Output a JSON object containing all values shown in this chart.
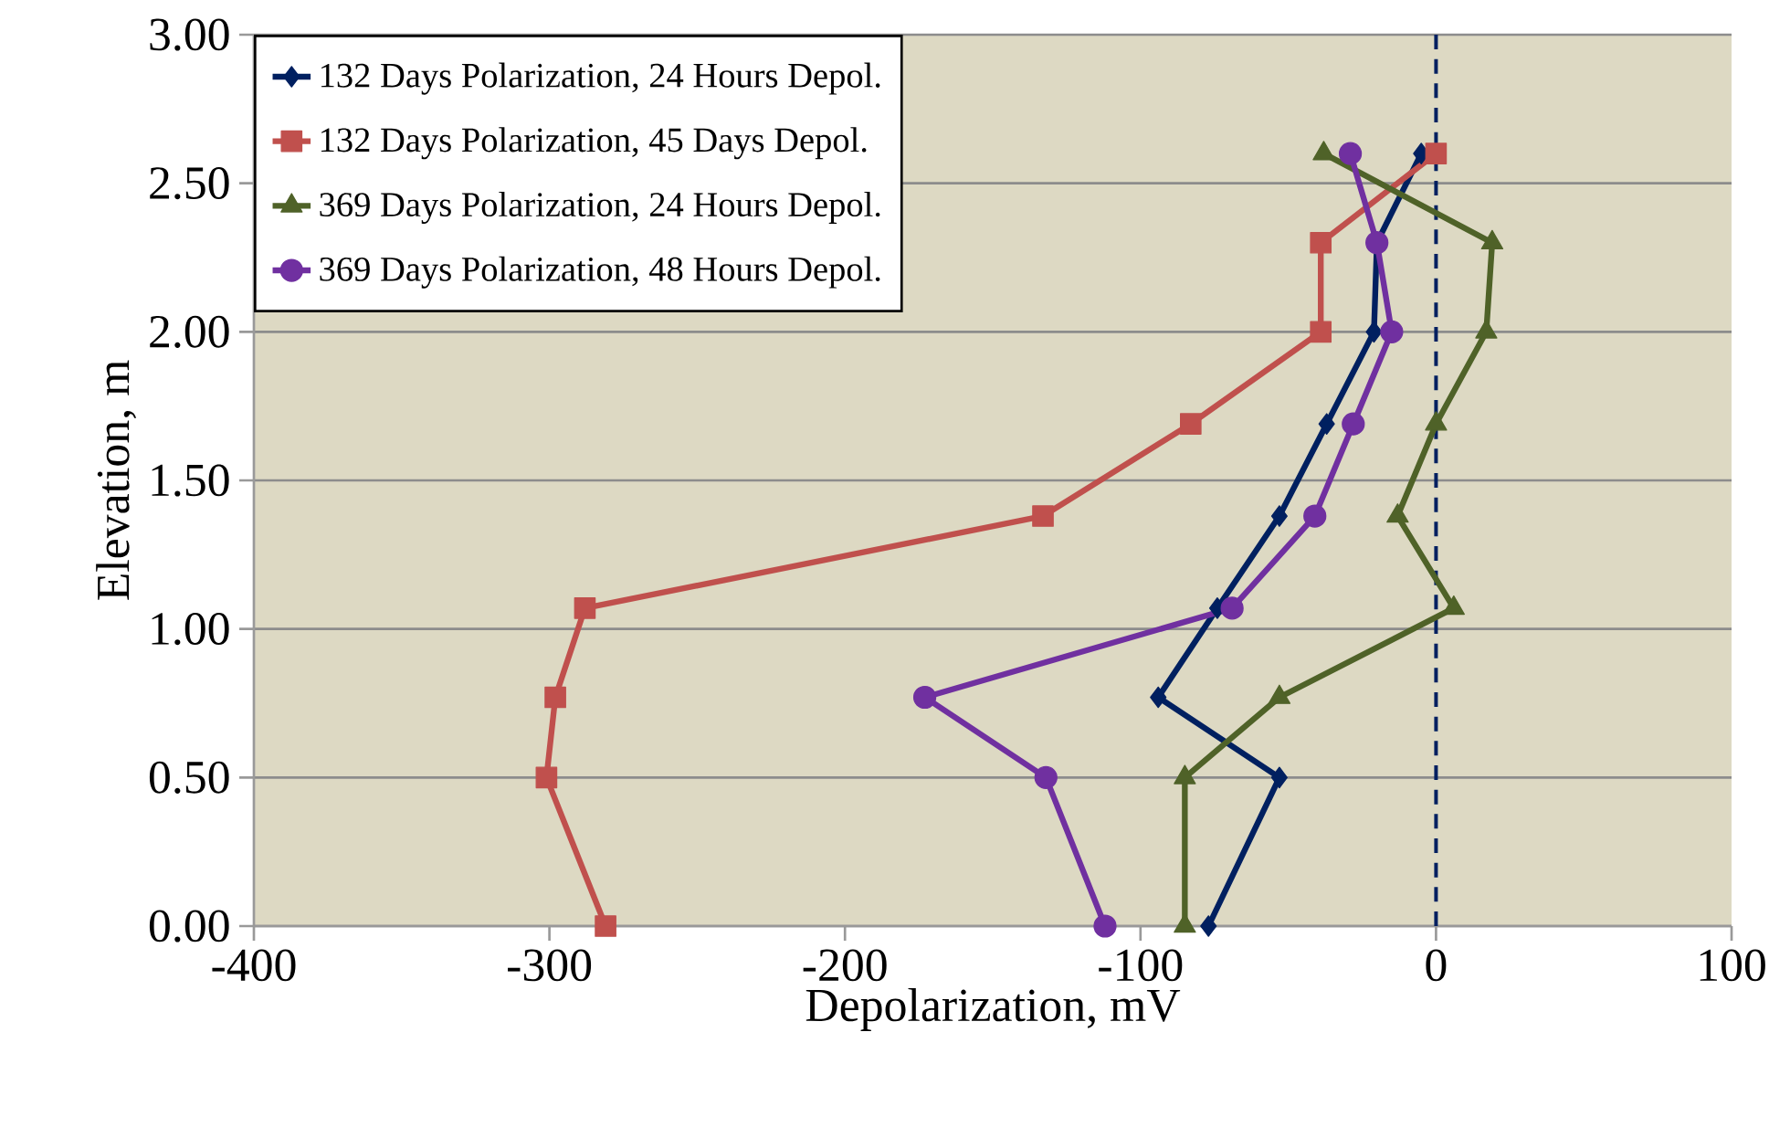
{
  "chart_data": {
    "type": "line",
    "xlabel": "Depolarization, mV",
    "ylabel": "Elevation, m",
    "xlim": [
      -400,
      100
    ],
    "xticks": [
      -400,
      -300,
      -200,
      -100,
      0,
      100
    ],
    "ylim": [
      0,
      3
    ],
    "yticks": [
      {
        "value": 0,
        "label": "0.00"
      },
      {
        "value": 0.5,
        "label": "0.50"
      },
      {
        "value": 1,
        "label": "1.00"
      },
      {
        "value": 1.5,
        "label": "1.50"
      },
      {
        "value": 2,
        "label": "2.00"
      },
      {
        "value": 2.5,
        "label": "2.50"
      },
      {
        "value": 3,
        "label": "3.00"
      }
    ],
    "grid": "y",
    "legend": "top left",
    "ref_lines": [
      {
        "axis": "x",
        "value": 0,
        "color": "#002060",
        "line_style": "dashed"
      }
    ],
    "series": [
      {
        "name": "132 Days Polarization, 24 Hours Depol.",
        "color": "#002060",
        "marker": "diamond",
        "x": [
          -77,
          -53,
          -94,
          -74,
          -53,
          -37,
          -21,
          -20,
          -5
        ],
        "values": [
          0,
          0.5,
          0.77,
          1.07,
          1.38,
          1.69,
          2.0,
          2.3,
          2.6
        ]
      },
      {
        "name": "132 Days Polarization, 45 Days Depol.",
        "color": "#C0504D",
        "marker": "square",
        "x": [
          -281,
          -301,
          -298,
          -288,
          -133,
          -83,
          -39,
          -39,
          0
        ],
        "values": [
          0,
          0.5,
          0.77,
          1.07,
          1.38,
          1.69,
          2.0,
          2.3,
          2.6
        ]
      },
      {
        "name": "369 Days Polarization, 24 Hours Depol.",
        "color": "#4F6228",
        "marker": "triangle",
        "x": [
          -85,
          -85,
          -53,
          6,
          -13,
          0,
          17,
          19,
          -38
        ],
        "values": [
          0,
          0.5,
          0.77,
          1.07,
          1.38,
          1.69,
          2.0,
          2.3,
          2.6
        ]
      },
      {
        "name": "369 Days Polarization, 48 Hours Depol.",
        "color": "#7030A0",
        "marker": "circle",
        "x": [
          -112,
          -132,
          -173,
          -69,
          -41,
          -28,
          -15,
          -20,
          -29
        ],
        "values": [
          0,
          0.5,
          0.77,
          1.07,
          1.38,
          1.69,
          2.0,
          2.3,
          2.6
        ]
      }
    ]
  }
}
